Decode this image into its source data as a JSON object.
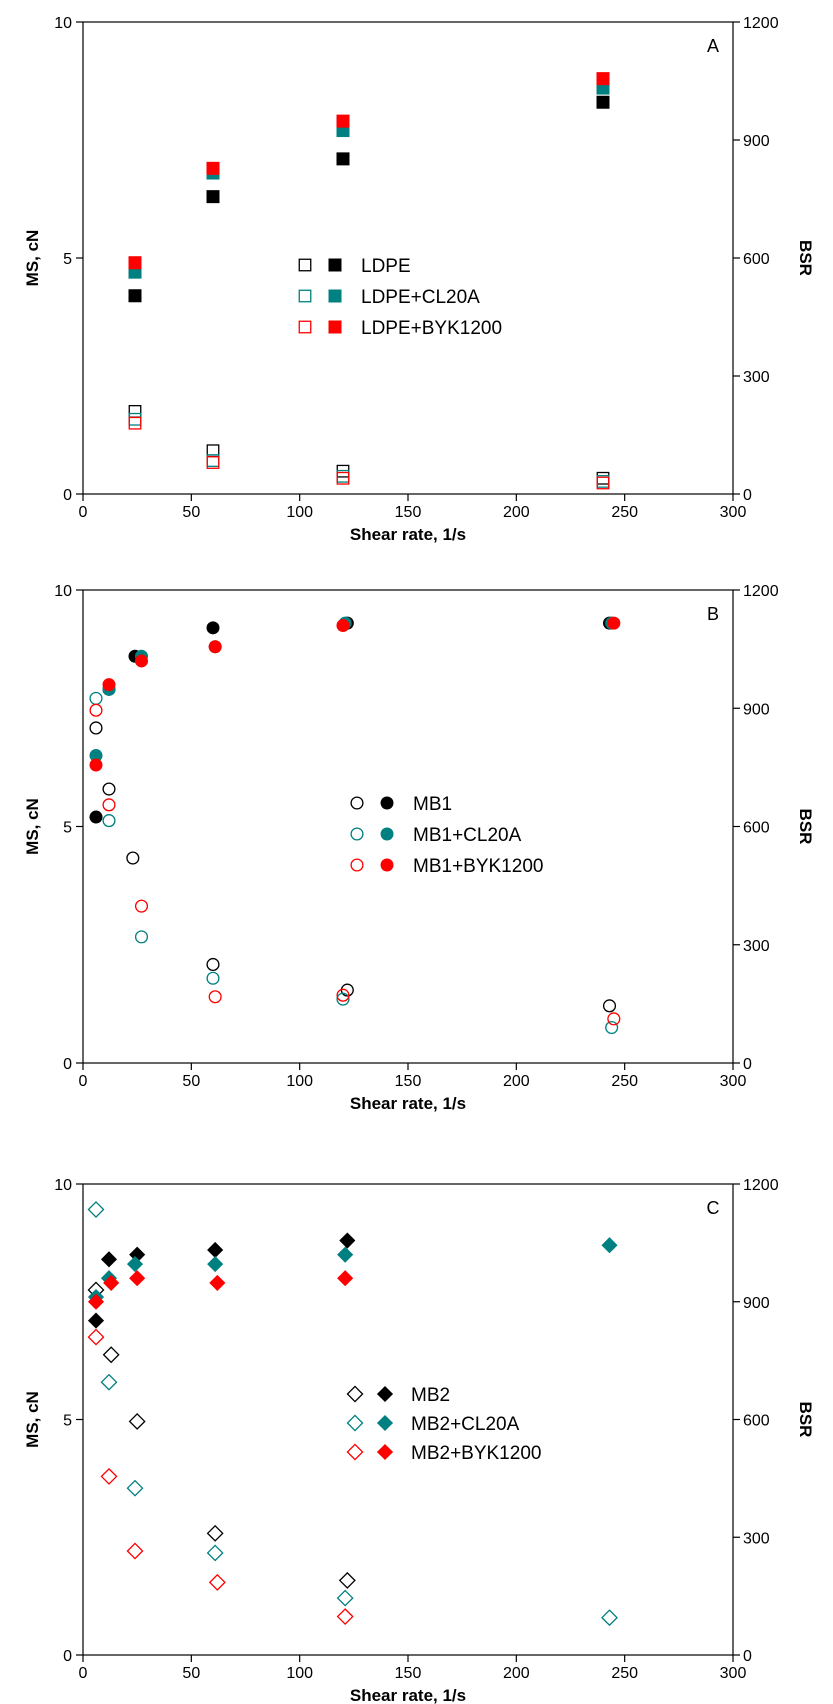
{
  "chart_data": [
    {
      "type": "scatter",
      "panel_label": "A",
      "xlabel": "Shear rate, 1/s",
      "ylabel": "MS, cN",
      "y2label": "BSR",
      "xlim": [
        0,
        300
      ],
      "ylim": [
        0,
        10
      ],
      "y2lim": [
        0,
        1200
      ],
      "xticks": [
        0,
        50,
        100,
        150,
        200,
        250,
        300
      ],
      "yticks": [
        0,
        5,
        10
      ],
      "y2ticks": [
        0,
        300,
        600,
        900,
        1200
      ],
      "marker": "square",
      "legend_position": "center",
      "series": [
        {
          "name": "LDPE",
          "color": "#000000",
          "ms": [
            [
              24,
              4.2
            ],
            [
              60,
              6.3
            ],
            [
              120,
              7.1
            ],
            [
              240,
              8.3
            ]
          ],
          "bsr": [
            [
              24,
              210
            ],
            [
              60,
              110
            ],
            [
              120,
              58
            ],
            [
              240,
              40
            ]
          ]
        },
        {
          "name": "LDPE+CL20A",
          "color": "#008080",
          "ms": [
            [
              24,
              4.7
            ],
            [
              60,
              6.8
            ],
            [
              120,
              7.7
            ],
            [
              240,
              8.6
            ]
          ],
          "bsr": [
            [
              24,
              190
            ],
            [
              60,
              85
            ],
            [
              120,
              45
            ],
            [
              240,
              32
            ]
          ]
        },
        {
          "name": "LDPE+BYK1200",
          "color": "#ff0000",
          "ms": [
            [
              24,
              4.9
            ],
            [
              60,
              6.9
            ],
            [
              120,
              7.9
            ],
            [
              240,
              8.8
            ]
          ],
          "bsr": [
            [
              24,
              180
            ],
            [
              60,
              80
            ],
            [
              120,
              40
            ],
            [
              240,
              28
            ]
          ]
        }
      ]
    },
    {
      "type": "scatter",
      "panel_label": "B",
      "xlabel": "Shear rate, 1/s",
      "ylabel": "MS, cN",
      "y2label": "BSR",
      "xlim": [
        0,
        300
      ],
      "ylim": [
        0,
        10
      ],
      "y2lim": [
        0,
        1200
      ],
      "xticks": [
        0,
        50,
        100,
        150,
        200,
        250,
        300
      ],
      "yticks": [
        0,
        5,
        10
      ],
      "y2ticks": [
        0,
        300,
        600,
        900,
        1200
      ],
      "marker": "circle",
      "legend_position": "center",
      "series": [
        {
          "name": "MB1",
          "color": "#000000",
          "ms": [
            [
              6,
              5.2
            ],
            [
              12,
              7.9
            ],
            [
              24,
              8.6
            ],
            [
              60,
              9.2
            ],
            [
              122,
              9.3
            ],
            [
              243,
              9.3
            ]
          ],
          "bsr": [
            [
              6,
              850
            ],
            [
              12,
              695
            ],
            [
              23,
              520
            ],
            [
              60,
              250
            ],
            [
              122,
              185
            ],
            [
              243,
              145
            ]
          ]
        },
        {
          "name": "MB1+CL20A",
          "color": "#008080",
          "ms": [
            [
              6,
              6.5
            ],
            [
              12,
              7.9
            ],
            [
              27,
              8.6
            ],
            [
              61,
              8.8
            ],
            [
              121,
              9.3
            ],
            [
              244,
              9.3
            ]
          ],
          "bsr": [
            [
              6,
              925
            ],
            [
              12,
              615
            ],
            [
              27,
              320
            ],
            [
              60,
              215
            ],
            [
              120,
              162
            ],
            [
              244,
              90
            ]
          ]
        },
        {
          "name": "MB1+BYK1200",
          "color": "#ff0000",
          "ms": [
            [
              6,
              6.3
            ],
            [
              12,
              8.0
            ],
            [
              27,
              8.5
            ],
            [
              61,
              8.8
            ],
            [
              120,
              9.25
            ],
            [
              245,
              9.3
            ]
          ],
          "bsr": [
            [
              6,
              895
            ],
            [
              12,
              655
            ],
            [
              27,
              398
            ],
            [
              61,
              168
            ],
            [
              120,
              172
            ],
            [
              245,
              112
            ]
          ]
        }
      ]
    },
    {
      "type": "scatter",
      "panel_label": "C",
      "xlabel": "Shear rate, 1/s",
      "ylabel": "MS, cN",
      "y2label": "BSR",
      "xlim": [
        0,
        300
      ],
      "ylim": [
        0,
        10
      ],
      "y2lim": [
        0,
        1200
      ],
      "xticks": [
        0,
        50,
        100,
        150,
        200,
        250,
        300
      ],
      "yticks": [
        0,
        5,
        10
      ],
      "y2ticks": [
        0,
        300,
        600,
        900,
        1200
      ],
      "marker": "diamond",
      "legend_position": "center",
      "series": [
        {
          "name": "MB2",
          "color": "#000000",
          "ms": [
            [
              6,
              7.1
            ],
            [
              12,
              8.4
            ],
            [
              25,
              8.5
            ],
            [
              61,
              8.6
            ],
            [
              122,
              8.8
            ]
          ],
          "bsr": [
            [
              6,
              930
            ],
            [
              13,
              765
            ],
            [
              25,
              595
            ],
            [
              61,
              310
            ],
            [
              122,
              190
            ]
          ]
        },
        {
          "name": "MB2+CL20A",
          "color": "#008080",
          "ms": [
            [
              6,
              7.6
            ],
            [
              12,
              8.0
            ],
            [
              24,
              8.3
            ],
            [
              61,
              8.3
            ],
            [
              121,
              8.5
            ],
            [
              243,
              8.7
            ]
          ],
          "bsr": [
            [
              6,
              1135
            ],
            [
              12,
              695
            ],
            [
              24,
              425
            ],
            [
              61,
              260
            ],
            [
              121,
              145
            ],
            [
              243,
              95
            ]
          ]
        },
        {
          "name": "MB2+BYK1200",
          "color": "#ff0000",
          "ms": [
            [
              6,
              7.5
            ],
            [
              13,
              7.9
            ],
            [
              25,
              8.0
            ],
            [
              62,
              7.9
            ],
            [
              121,
              8.0
            ]
          ],
          "bsr": [
            [
              6,
              810
            ],
            [
              12,
              455
            ],
            [
              24,
              265
            ],
            [
              62,
              185
            ],
            [
              121,
              98
            ]
          ]
        }
      ]
    }
  ]
}
